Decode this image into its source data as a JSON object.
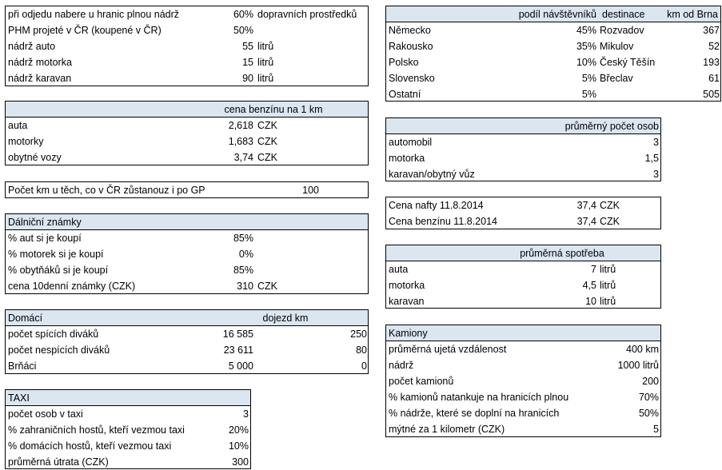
{
  "colors": {
    "header_fill": "#dce6f1",
    "border": "#000000",
    "background": "#ffffff"
  },
  "trip": {
    "rows": [
      {
        "label": "při odjedu nabere u hranic plnou nádrž",
        "value": "60%",
        "unit": "dopravních prostředků"
      },
      {
        "label": "PHM projeté v ČR (koupené v ČR)",
        "value": "50%",
        "unit": ""
      },
      {
        "label": "nádrž auto",
        "value": "55",
        "unit": "litrů"
      },
      {
        "label": "nádrž motorka",
        "value": "15",
        "unit": "litrů"
      },
      {
        "label": "nádrž karavan",
        "value": "90",
        "unit": "litrů"
      }
    ]
  },
  "benzin": {
    "header": "cena benzínu na 1 km",
    "rows": [
      {
        "label": "auta",
        "value": "2,618",
        "unit": "CZK"
      },
      {
        "label": "motorky",
        "value": "1,683",
        "unit": "CZK"
      },
      {
        "label": "obytné vozy",
        "value": "3,74",
        "unit": "CZK"
      }
    ]
  },
  "km_cr": {
    "label": "Počet km u těch, co v ČR zůstanouz i po GP",
    "value": "100"
  },
  "dalnicni": {
    "header": "Dálniční známky",
    "rows": [
      {
        "label": "% aut si je koupí",
        "value": "85%",
        "unit": ""
      },
      {
        "label": "% motorek si je koupí",
        "value": "0%",
        "unit": ""
      },
      {
        "label": "% obytňáků si je koupí",
        "value": "85%",
        "unit": ""
      },
      {
        "label": "cena 10denní známky (CZK)",
        "value": "310",
        "unit": "CZK"
      }
    ]
  },
  "domaci": {
    "header": "Domácí",
    "header2": "dojezd km",
    "rows": [
      {
        "label": "počet spících diváků",
        "value": "16 585",
        "km": "250"
      },
      {
        "label": "počet nespících diváků",
        "value": "23 611",
        "km": "80"
      },
      {
        "label": "Brňáci",
        "value": "5 000",
        "km": "0"
      }
    ]
  },
  "taxi": {
    "header": "TAXI",
    "rows": [
      {
        "label": "počet osob v taxi",
        "value": "3"
      },
      {
        "label": "% zahraničních hostů, kteří vezmou taxi",
        "value": "20%"
      },
      {
        "label": "% domácích hostů, kteří vezmou taxi",
        "value": "10%"
      },
      {
        "label": "průměrná útrata (CZK)",
        "value": "300"
      }
    ]
  },
  "visitors": {
    "header_share": "podíl návštěvníků",
    "header_dest": "destinace",
    "header_km": "km od Brna",
    "rows": [
      {
        "country": "Německo",
        "share": "45%",
        "dest": "Rozvadov",
        "km": "367"
      },
      {
        "country": "Rakousko",
        "share": "35%",
        "dest": "Mikulov",
        "km": "52"
      },
      {
        "country": "Polsko",
        "share": "10%",
        "dest": "Český Těšín",
        "km": "193"
      },
      {
        "country": "Slovensko",
        "share": "5%",
        "dest": "Břeclav",
        "km": "61"
      },
      {
        "country": "Ostatní",
        "share": "5%",
        "dest": "",
        "km": "505"
      }
    ]
  },
  "persons": {
    "header": "průměrný počet osob",
    "rows": [
      {
        "label": "automobil",
        "value": "3"
      },
      {
        "label": "motorka",
        "value": "1,5"
      },
      {
        "label": "karavan/obytný vůz",
        "value": "3"
      }
    ]
  },
  "prices": {
    "rows": [
      {
        "label": "Cena nafty 11.8.2014",
        "value": "37,4",
        "unit": "CZK"
      },
      {
        "label": "Cena benzínu 11.8.2014",
        "value": "37,4",
        "unit": "CZK"
      }
    ]
  },
  "spotreba": {
    "header": "průměrná spotřeba",
    "rows": [
      {
        "label": "auta",
        "value": "7",
        "unit": "litrů"
      },
      {
        "label": "motorka",
        "value": "4,5",
        "unit": "litrů"
      },
      {
        "label": "karavan",
        "value": "10",
        "unit": "litrů"
      }
    ]
  },
  "kamiony": {
    "header": "Kamiony",
    "rows": [
      {
        "label": "průměrná ujetá vzdálenost",
        "value": "400 km"
      },
      {
        "label": "nádrž",
        "value": "1000 litrů"
      },
      {
        "label": "počet kamionů",
        "value": "200"
      },
      {
        "label": "% kamionů natankuje na hranicích plnou",
        "value": "70%"
      },
      {
        "label": "% nádrže, které se doplní na hranicích",
        "value": "50%"
      },
      {
        "label": "mýtné za 1 kilometr (CZK)",
        "value": "5"
      }
    ]
  }
}
